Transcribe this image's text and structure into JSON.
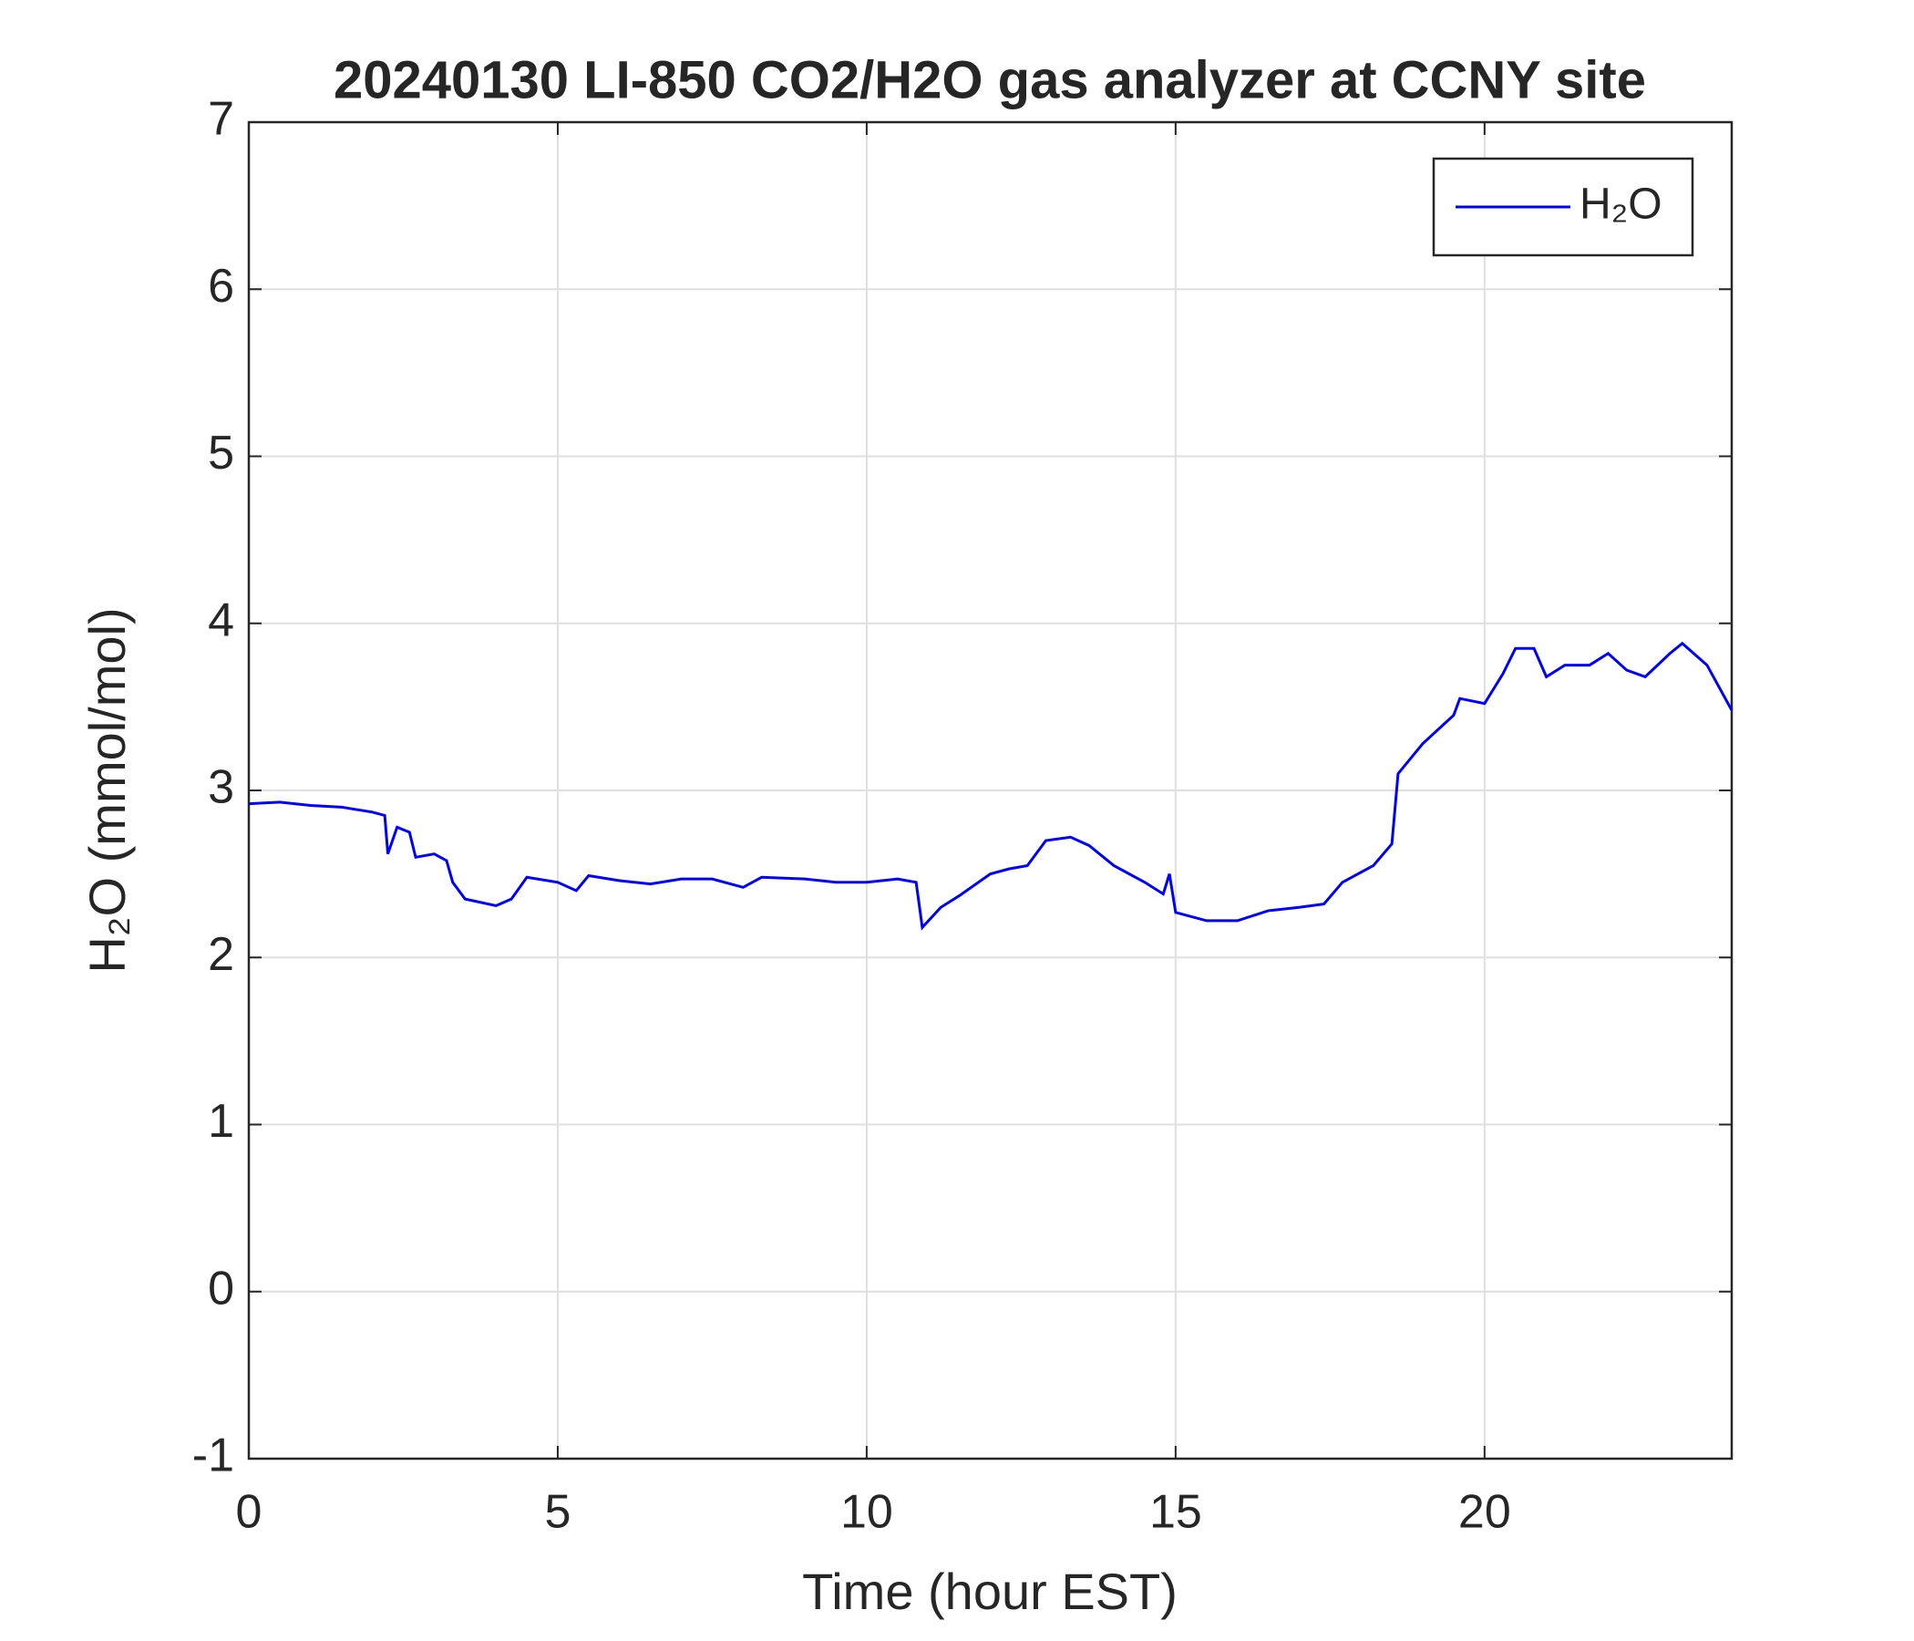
{
  "chart_data": {
    "type": "line",
    "title": "20240130 LI-850 CO2/H2O gas analyzer at CCNY site",
    "xlabel": "Time (hour EST)",
    "ylabel": "H₂O (mmol/mol)",
    "x": [
      0,
      0.5,
      1,
      1.5,
      2,
      2.2,
      2.25,
      2.4,
      2.6,
      2.7,
      3,
      3.2,
      3.3,
      3.5,
      4,
      4.25,
      4.5,
      5,
      5.3,
      5.5,
      6,
      6.5,
      7,
      7.5,
      8,
      8.3,
      9,
      9.5,
      10,
      10.5,
      10.8,
      10.9,
      11.2,
      11.5,
      12,
      12.3,
      12.6,
      12.9,
      13.3,
      13.6,
      14,
      14.5,
      14.8,
      14.9,
      15,
      15.5,
      16,
      16.5,
      17,
      17.4,
      17.7,
      18.2,
      18.5,
      18.6,
      19,
      19.5,
      19.6,
      20,
      20.3,
      20.5,
      20.8,
      21,
      21.3,
      21.7,
      22,
      22.3,
      22.6,
      23,
      23.2,
      23.6,
      24
    ],
    "series": [
      {
        "name": "H₂O",
        "color": "#0000ff",
        "values": [
          2.92,
          2.93,
          2.91,
          2.9,
          2.87,
          2.85,
          2.62,
          2.78,
          2.75,
          2.6,
          2.62,
          2.58,
          2.45,
          2.35,
          2.31,
          2.35,
          2.48,
          2.45,
          2.4,
          2.49,
          2.46,
          2.44,
          2.47,
          2.47,
          2.42,
          2.48,
          2.47,
          2.45,
          2.45,
          2.47,
          2.45,
          2.18,
          2.3,
          2.37,
          2.5,
          2.53,
          2.55,
          2.7,
          2.72,
          2.67,
          2.55,
          2.45,
          2.38,
          2.5,
          2.27,
          2.22,
          2.22,
          2.28,
          2.3,
          2.32,
          2.45,
          2.55,
          2.68,
          3.1,
          3.28,
          3.45,
          3.55,
          3.52,
          3.7,
          3.85,
          3.85,
          3.68,
          3.75,
          3.75,
          3.82,
          3.72,
          3.68,
          3.82,
          3.88,
          3.75,
          3.48
        ]
      }
    ],
    "xlim": [
      0,
      24
    ],
    "xticks": [
      0,
      5,
      10,
      15,
      20
    ],
    "ylim": [
      -1,
      7
    ],
    "yticks": [
      -1,
      0,
      1,
      2,
      3,
      4,
      5,
      6,
      7
    ],
    "grid": true,
    "legend": "top-right"
  }
}
